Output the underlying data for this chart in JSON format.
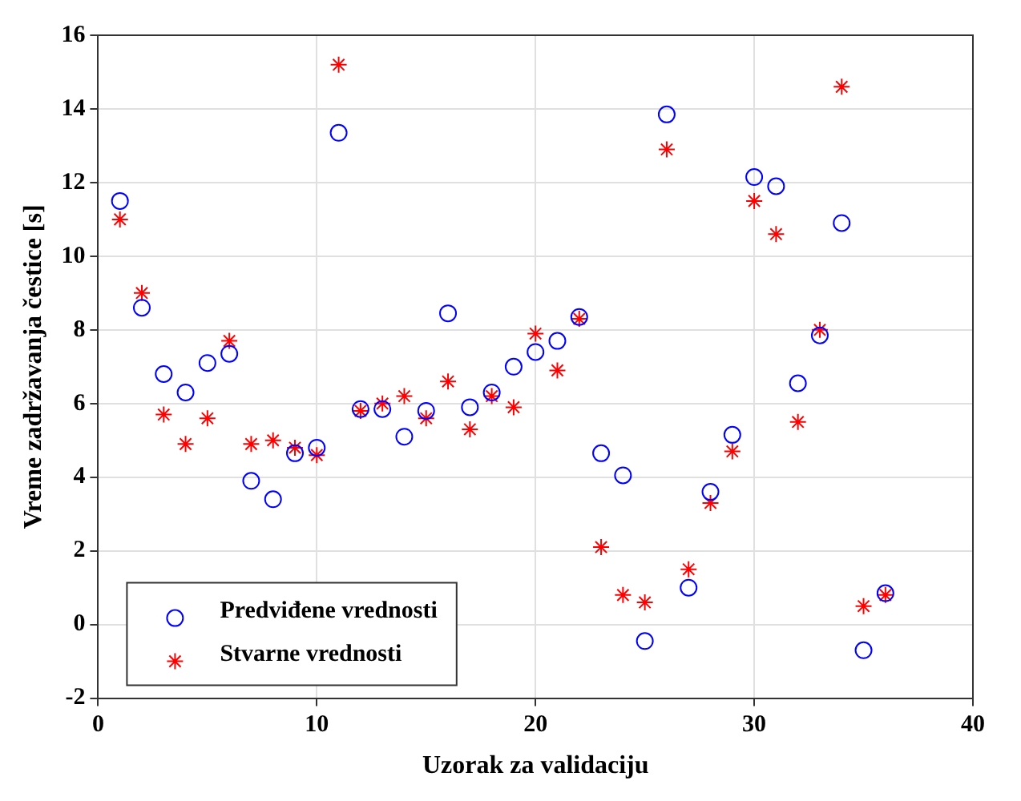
{
  "chart_data": {
    "type": "scatter",
    "xlabel": "Uzorak za validaciju",
    "ylabel": "Vreme zadržavanja čestice [s]",
    "xlim": [
      0,
      40
    ],
    "xticks": [
      0,
      10,
      20,
      30,
      40
    ],
    "ylim": [
      -2,
      16
    ],
    "yticks": [
      -2,
      0,
      2,
      4,
      6,
      8,
      10,
      12,
      14,
      16
    ],
    "grid": true,
    "legend": "bottom left",
    "x": [
      1,
      2,
      3,
      4,
      5,
      6,
      7,
      8,
      9,
      10,
      11,
      12,
      13,
      14,
      15,
      16,
      17,
      18,
      19,
      20,
      21,
      22,
      23,
      24,
      25,
      26,
      27,
      28,
      29,
      30,
      31,
      32,
      33,
      34,
      35,
      36
    ],
    "series": [
      {
        "name": "Predviđene vrednosti",
        "color": "#0000ff",
        "marker": "circle",
        "values": [
          11.5,
          8.6,
          6.8,
          6.3,
          7.1,
          7.35,
          3.9,
          3.4,
          4.65,
          4.8,
          13.35,
          5.85,
          5.85,
          5.1,
          5.8,
          8.45,
          5.9,
          6.3,
          7.0,
          7.4,
          7.7,
          8.35,
          4.65,
          4.05,
          -0.45,
          13.85,
          1.0,
          3.6,
          5.15,
          12.15,
          11.9,
          6.55,
          7.85,
          10.9,
          -0.7,
          0.85
        ]
      },
      {
        "name": "Stvarne vrednosti",
        "color": "#ff0000",
        "marker": "cross",
        "values": [
          11.0,
          9.0,
          5.7,
          4.9,
          5.6,
          7.7,
          4.9,
          5.0,
          4.8,
          4.6,
          15.2,
          5.8,
          6.0,
          6.2,
          5.6,
          6.6,
          5.3,
          6.2,
          5.9,
          7.9,
          6.9,
          8.3,
          2.1,
          0.8,
          0.6,
          12.9,
          1.5,
          3.3,
          4.7,
          11.5,
          10.6,
          5.5,
          8.0,
          14.6,
          0.5,
          0.8
        ]
      }
    ]
  }
}
